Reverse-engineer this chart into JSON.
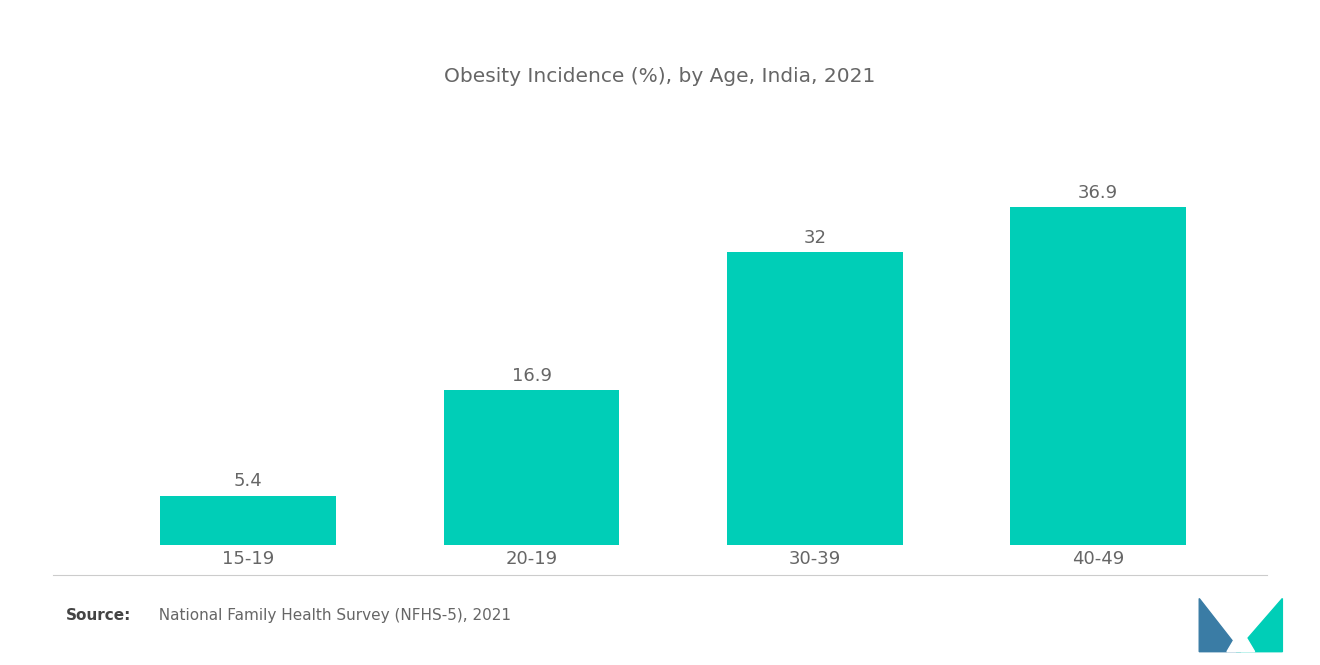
{
  "title": "Obesity Incidence (%), by Age, India, 2021",
  "categories": [
    "15-19",
    "20-19",
    "30-39",
    "40-49"
  ],
  "values": [
    5.4,
    16.9,
    32,
    36.9
  ],
  "bar_color": "#00CEB7",
  "background_color": "#FFFFFF",
  "title_fontsize": 14.5,
  "tick_fontsize": 13,
  "value_fontsize": 13,
  "source_bold": "Source:",
  "source_text": "  National Family Health Survey (NFHS-5), 2021",
  "source_fontsize": 11,
  "ylim": [
    0,
    45
  ],
  "bar_width": 0.62,
  "title_color": "#666666",
  "tick_color": "#666666",
  "value_color": "#666666"
}
